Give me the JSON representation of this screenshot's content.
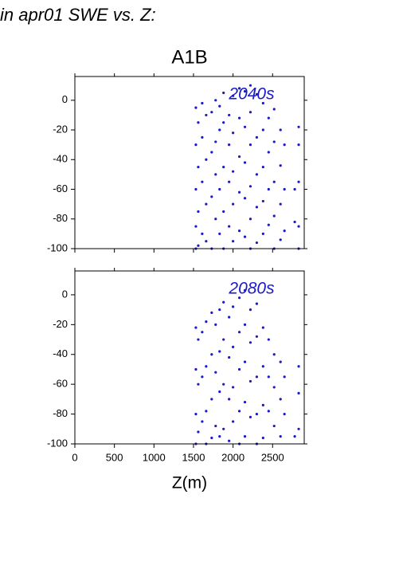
{
  "page_title": "in apr01 SWE vs. Z:",
  "chart_data": [
    {
      "type": "scatter",
      "title": "A1B",
      "annotation": "2040s",
      "color": "#1a1acc",
      "xlim": [
        0,
        2900
      ],
      "xticks": [
        0,
        500,
        1000,
        1500,
        2000,
        2500
      ],
      "ylim": [
        -100,
        16
      ],
      "yticks": [
        -100,
        -80,
        -60,
        -40,
        -20,
        0
      ],
      "x": [
        1530,
        1530,
        1530,
        1530,
        1530,
        1560,
        1560,
        1560,
        1560,
        1610,
        1610,
        1610,
        1610,
        1660,
        1660,
        1660,
        1660,
        1730,
        1730,
        1730,
        1730,
        1780,
        1780,
        1780,
        1780,
        1830,
        1830,
        1830,
        1830,
        1880,
        1880,
        1880,
        1880,
        1880,
        1950,
        1950,
        1950,
        1950,
        2000,
        2000,
        2000,
        2000,
        2000,
        2080,
        2080,
        2080,
        2080,
        2080,
        2150,
        2150,
        2150,
        2150,
        2150,
        2220,
        2220,
        2220,
        2220,
        2220,
        2220,
        2300,
        2300,
        2300,
        2300,
        2300,
        2380,
        2380,
        2380,
        2380,
        2380,
        2450,
        2450,
        2450,
        2450,
        2520,
        2520,
        2520,
        2520,
        2520,
        2600,
        2600,
        2600,
        2600,
        2650,
        2650,
        2650,
        2780,
        2780,
        2830,
        2830,
        2830,
        2830,
        2830
      ],
      "values": [
        -5,
        -30,
        -60,
        -85,
        -100,
        -15,
        -45,
        -75,
        -98,
        -2,
        -25,
        -55,
        -90,
        -10,
        -40,
        -70,
        -95,
        -8,
        -35,
        -65,
        -100,
        0,
        -28,
        -50,
        -80,
        -4,
        -20,
        -60,
        -90,
        5,
        -15,
        -45,
        -75,
        -100,
        -10,
        -30,
        -55,
        -85,
        3,
        -22,
        -48,
        -70,
        -95,
        8,
        -12,
        -38,
        -62,
        -88,
        6,
        -18,
        -42,
        -66,
        -92,
        10,
        -8,
        -30,
        -58,
        -80,
        -100,
        4,
        -25,
        -50,
        -72,
        -96,
        -2,
        -20,
        -45,
        -68,
        -90,
        -12,
        -35,
        -60,
        -84,
        -6,
        -28,
        -55,
        -78,
        -100,
        -20,
        -44,
        -70,
        -94,
        -30,
        -60,
        -88,
        -60,
        -82,
        -18,
        -30,
        -55,
        -85,
        -100
      ]
    },
    {
      "type": "scatter",
      "annotation": "2080s",
      "xlabel": "Z(m)",
      "color": "#1a1acc",
      "xlim": [
        0,
        2900
      ],
      "xticks": [
        0,
        500,
        1000,
        1500,
        2000,
        2500
      ],
      "ylim": [
        -100,
        16
      ],
      "yticks": [
        -100,
        -80,
        -60,
        -40,
        -20,
        0
      ],
      "x": [
        1530,
        1530,
        1530,
        1530,
        1560,
        1560,
        1560,
        1610,
        1610,
        1610,
        1660,
        1660,
        1660,
        1660,
        1730,
        1730,
        1730,
        1730,
        1780,
        1780,
        1780,
        1830,
        1830,
        1830,
        1830,
        1880,
        1880,
        1880,
        1880,
        1950,
        1950,
        1950,
        1950,
        2000,
        2000,
        2000,
        2000,
        2080,
        2080,
        2080,
        2080,
        2080,
        2150,
        2150,
        2150,
        2150,
        2150,
        2220,
        2220,
        2220,
        2220,
        2300,
        2300,
        2300,
        2300,
        2300,
        2380,
        2380,
        2380,
        2380,
        2450,
        2450,
        2450,
        2520,
        2520,
        2520,
        2600,
        2600,
        2600,
        2650,
        2650,
        2780,
        2830,
        2830,
        2830
      ],
      "values": [
        -22,
        -50,
        -80,
        -100,
        -30,
        -60,
        -92,
        -25,
        -55,
        -85,
        -18,
        -48,
        -78,
        -100,
        -12,
        -40,
        -70,
        -96,
        -20,
        -52,
        -88,
        -10,
        -38,
        -65,
        -95,
        -5,
        -30,
        -60,
        -90,
        -15,
        -42,
        -70,
        -98,
        -8,
        -35,
        -62,
        -85,
        -2,
        -25,
        -50,
        -78,
        -100,
        3,
        -20,
        -45,
        -72,
        -95,
        -10,
        -32,
        -58,
        -82,
        -6,
        -28,
        -55,
        -80,
        -100,
        -22,
        -48,
        -74,
        -96,
        -30,
        -55,
        -78,
        -40,
        -62,
        -88,
        -45,
        -70,
        -95,
        -55,
        -80,
        -95,
        -48,
        -66,
        -90
      ]
    }
  ]
}
